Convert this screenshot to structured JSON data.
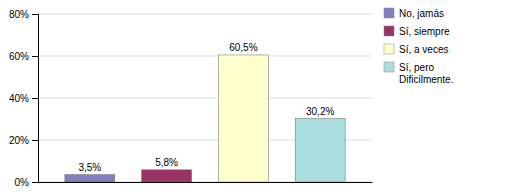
{
  "chart_data": {
    "type": "bar",
    "categories": [
      "No, jamás",
      "Sí, siempre",
      "Sí, a veces",
      "Sí, pero\nDificilmente."
    ],
    "values": [
      3.5,
      5.8,
      60.5,
      30.2
    ],
    "value_labels": [
      "3,5%",
      "5,8%",
      "60,5%",
      "30,2%"
    ],
    "colors": [
      "#8080c0",
      "#993366",
      "#ffffcc",
      "#aadddd"
    ],
    "ylim": [
      0,
      80
    ],
    "yticks": [
      {
        "value": 0,
        "label": "0%"
      },
      {
        "value": 20,
        "label": "20%"
      },
      {
        "value": 40,
        "label": "40%"
      },
      {
        "value": 60,
        "label": "60%"
      },
      {
        "value": 80,
        "label": "80%"
      }
    ],
    "grid": true,
    "data_labels": true,
    "legend": "upper right",
    "tick_labels": "y"
  }
}
